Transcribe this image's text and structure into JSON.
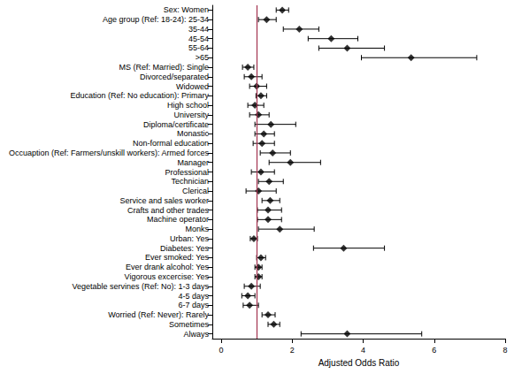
{
  "chart_data": {
    "type": "forest",
    "x_label": "Adjusted Odds Ratio",
    "categories": [
      "Sex: Women",
      "Age group (Ref: 18-24): 25-34",
      "35-44",
      "45-54",
      "55-64",
      ">65",
      "MS (Ref: Married): Single",
      "Divorced/separated",
      "Widowed",
      "Education (Ref: No education): Primary",
      "High school",
      "University",
      "Diploma/certificate",
      "Monastic",
      "Non-formal education",
      "Occuaption (Ref: Farmers/unskill workers): Armed forces",
      "Manager",
      "Professional",
      "Technician",
      "Clerical",
      "Service and sales worker",
      "Crafts and other trades",
      "Machine operator",
      "Monks",
      "Urban: Yes",
      "Diabetes: Yes",
      "Ever smoked: Yes",
      "Ever drank alcohol: Yes",
      "Vigorous excercise: Yes",
      "Vegetable servines (Ref: No): 1-3 days",
      "4-5 days",
      "6-7 days",
      "Worried (Ref: Never): Rarely",
      "Sometimes",
      "Always"
    ],
    "values": [
      1.72,
      1.28,
      2.2,
      3.1,
      3.55,
      5.35,
      0.75,
      0.85,
      1.0,
      1.12,
      0.95,
      1.05,
      1.4,
      1.2,
      1.15,
      1.45,
      1.95,
      1.12,
      1.35,
      1.05,
      1.38,
      1.32,
      1.32,
      1.65,
      0.92,
      3.45,
      1.12,
      1.05,
      1.05,
      0.85,
      0.75,
      0.8,
      1.32,
      1.48,
      3.55
    ],
    "lower": [
      1.55,
      1.05,
      1.75,
      2.45,
      2.75,
      3.95,
      0.6,
      0.65,
      0.8,
      0.98,
      0.75,
      0.8,
      0.95,
      0.95,
      0.9,
      1.1,
      1.35,
      0.85,
      1.05,
      0.7,
      1.15,
      1.02,
      1.02,
      1.05,
      0.82,
      2.6,
      1.0,
      0.95,
      0.95,
      0.65,
      0.58,
      0.62,
      1.15,
      1.32,
      2.25
    ],
    "upper": [
      1.9,
      1.55,
      2.75,
      3.85,
      4.6,
      7.2,
      0.92,
      1.15,
      1.28,
      1.28,
      1.2,
      1.35,
      2.1,
      1.5,
      1.5,
      1.95,
      2.8,
      1.5,
      1.75,
      1.55,
      1.65,
      1.7,
      1.7,
      2.62,
      1.02,
      4.6,
      1.25,
      1.15,
      1.15,
      1.1,
      0.95,
      1.05,
      1.52,
      1.65,
      5.65
    ],
    "reference_value": 1,
    "color": "#000000",
    "marker": "diamond",
    "xlim": [
      -0.25,
      8
    ],
    "xticks": [
      0,
      2,
      4,
      6,
      8
    ],
    "grid": false
  }
}
